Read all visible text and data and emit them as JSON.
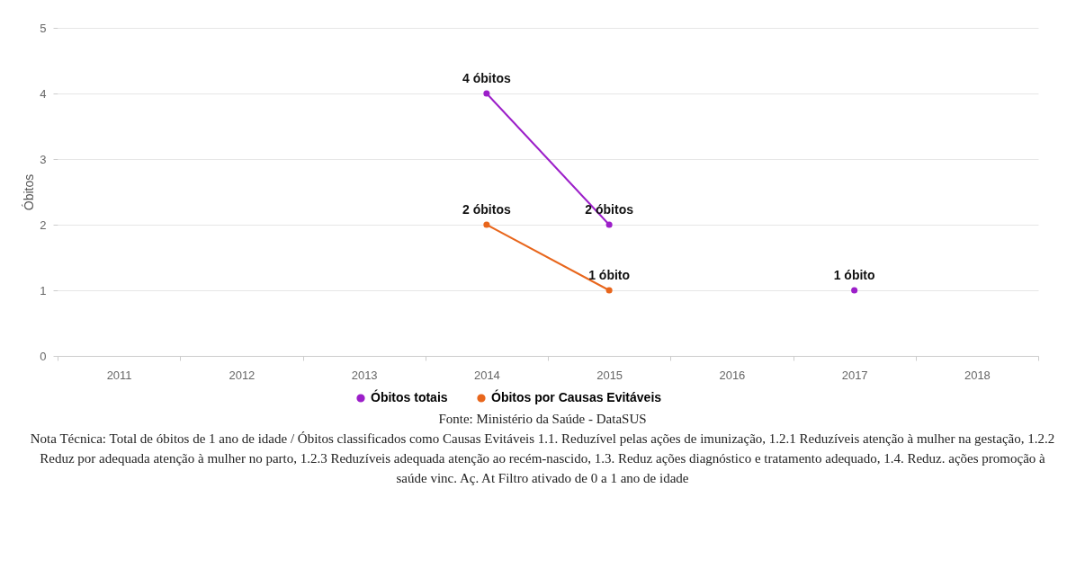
{
  "chart_data": {
    "type": "line",
    "categories": [
      "2011",
      "2012",
      "2013",
      "2014",
      "2015",
      "2016",
      "2017",
      "2018"
    ],
    "ylabel": "Óbitos",
    "ylim": [
      0,
      5
    ],
    "yticks": [
      0,
      1,
      2,
      3,
      4,
      5
    ],
    "grid": "y",
    "legend": "bottom",
    "marker": "circle",
    "series": [
      {
        "name": "Óbitos totais",
        "color": "#9c1fc9",
        "values": [
          null,
          null,
          null,
          4,
          2,
          null,
          1,
          null
        ],
        "value_labels": [
          null,
          null,
          null,
          "4 óbitos",
          "2 óbitos",
          null,
          "1 óbito",
          null
        ]
      },
      {
        "name": "Óbitos por Causas Evitáveis",
        "color": "#e8661c",
        "values": [
          null,
          null,
          null,
          2,
          1,
          null,
          null,
          null
        ],
        "value_labels": [
          null,
          null,
          null,
          "2 óbitos",
          "1 óbito",
          null,
          null,
          null
        ]
      }
    ],
    "annotations": [
      "Fonte: Ministério da Saúde - DataSUS",
      "Nota Técnica: Total de óbitos de 1 ano de idade / Óbitos classificados como Causas Evitáveis 1.1. Reduzível pelas ações de imunização, 1.2.1 Reduzíveis atenção à mulher na gestação, 1.2.2 Reduz por adequada atenção à mulher no parto, 1.2.3 Reduzíveis adequada atenção ao recém-nascido, 1.3. Reduz ações diagnóstico e tratamento adequado, 1.4. Reduz. ações promoção à saúde vinc. Aç. At Filtro ativado de 0 a 1 ano de idade"
    ]
  }
}
